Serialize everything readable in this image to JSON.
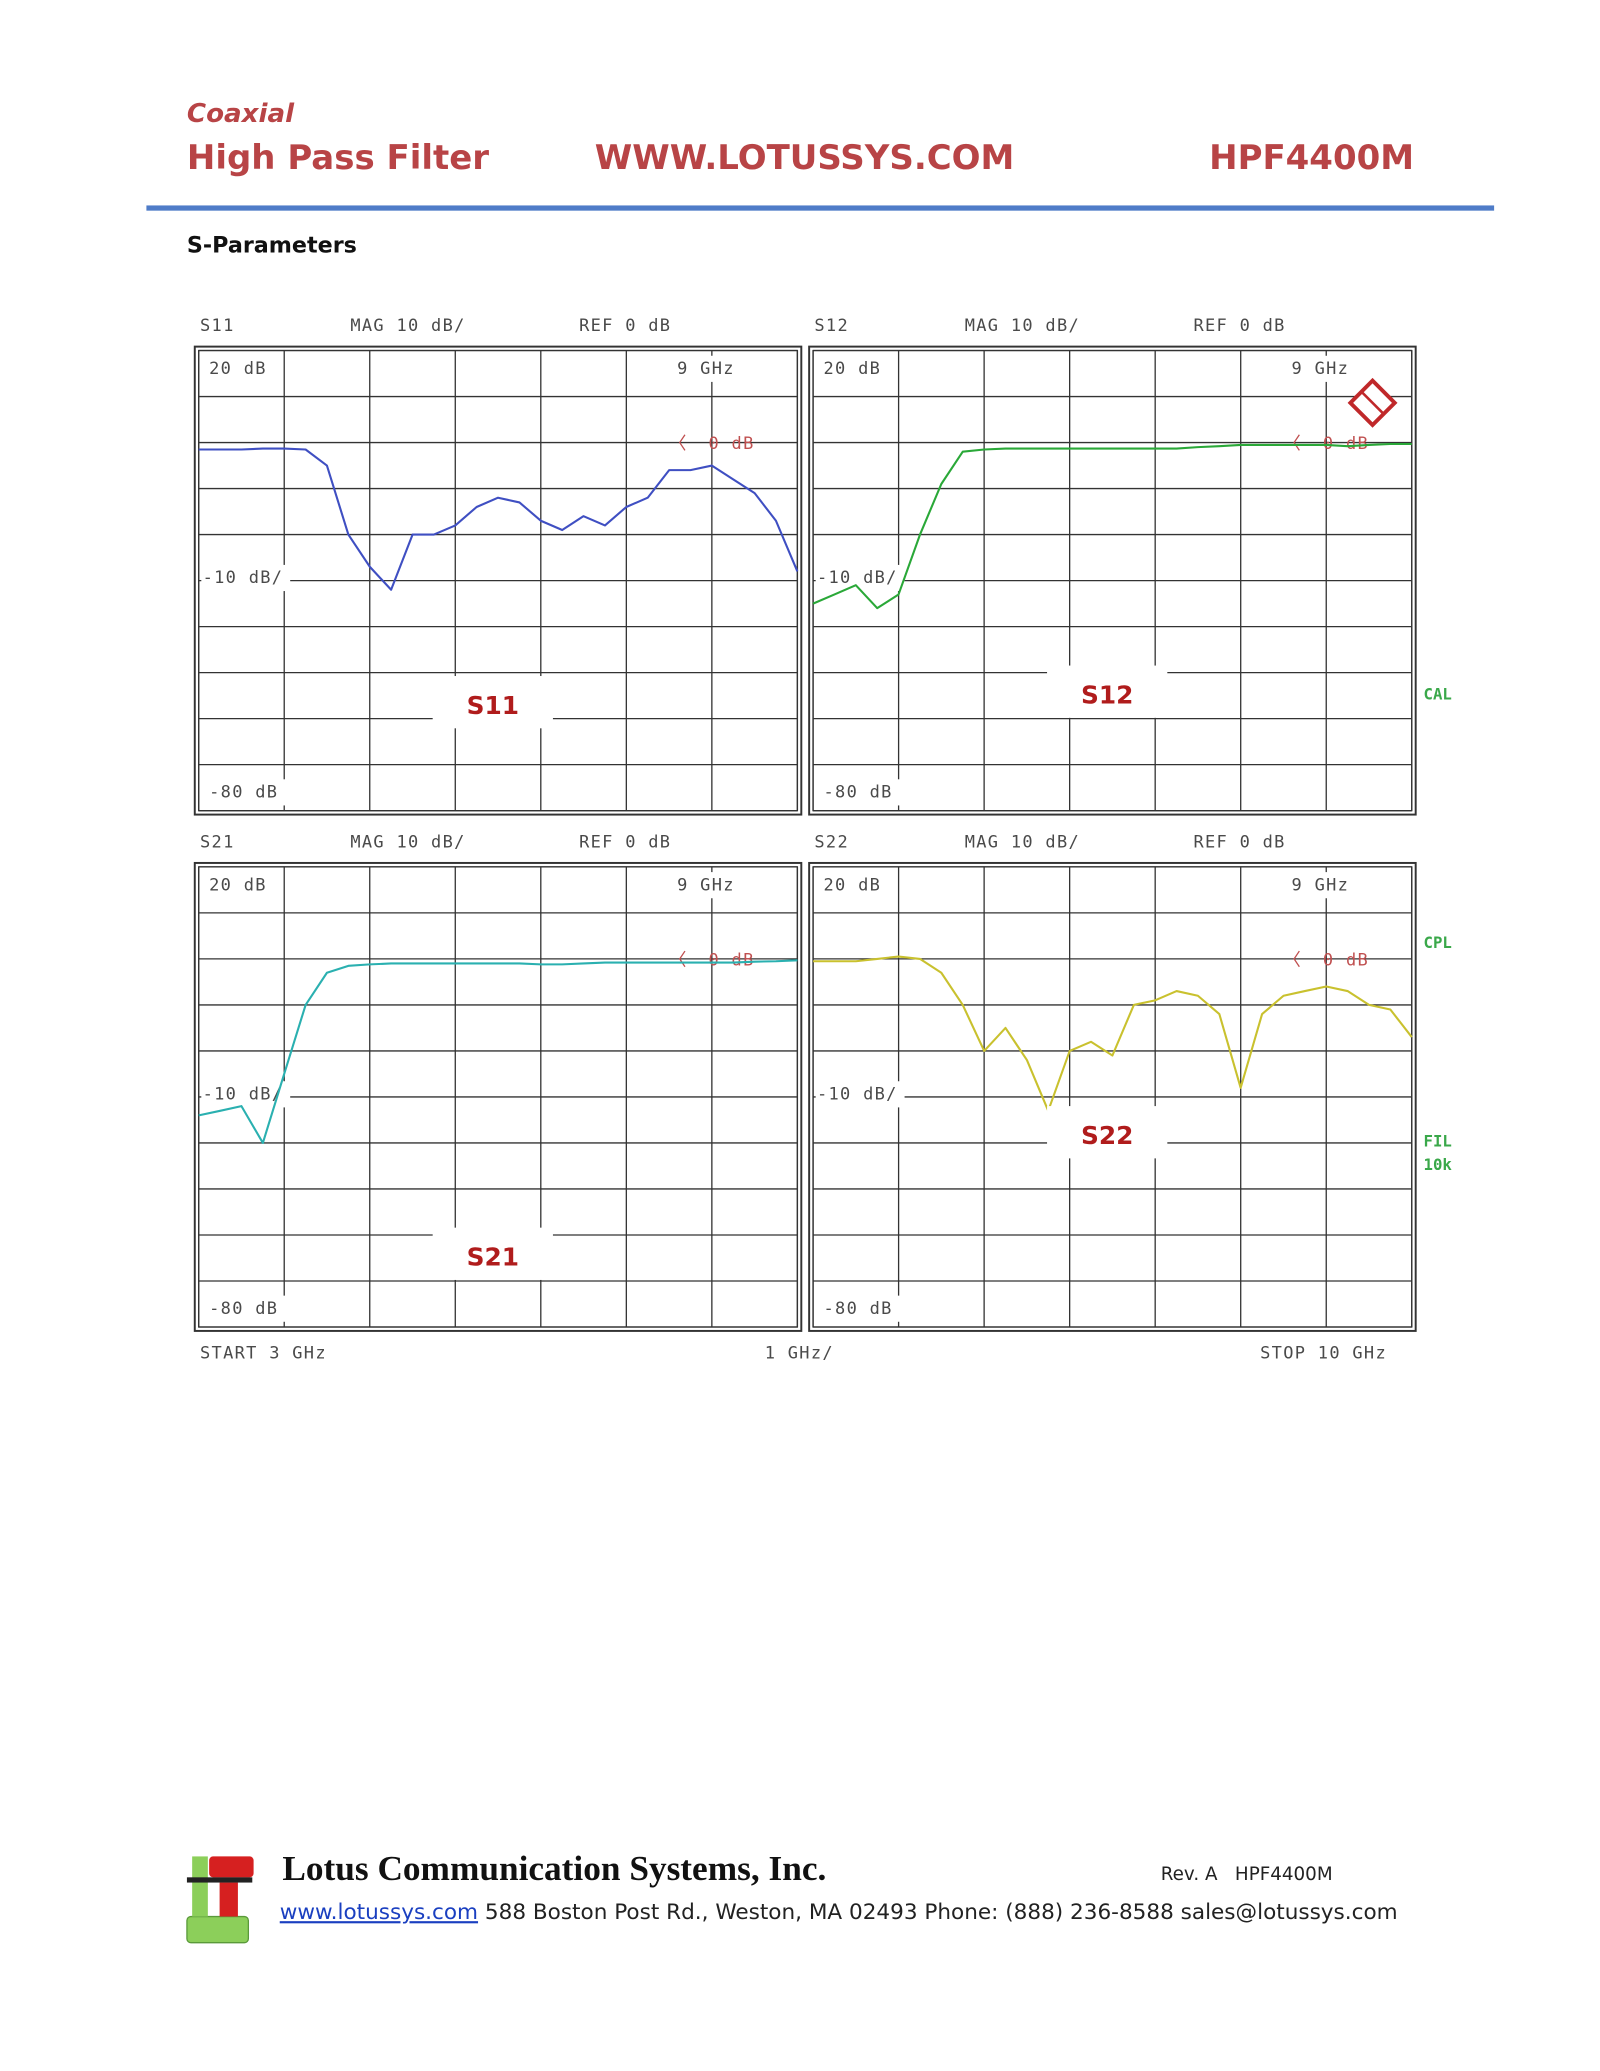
{
  "header": {
    "subtitle": "Coaxial",
    "title": "High Pass Filter",
    "website": "WWW.LOTUSSYS.COM",
    "part": "HPF4400M"
  },
  "section": "S-Parameters",
  "chart_data": [
    {
      "type": "line",
      "name": "S11",
      "scale_label": "MAG 10 dB/",
      "ref_label": "REF 0 dB",
      "label": "S11",
      "top_label": "20 dB",
      "bottom_label": "-80 dB",
      "marker_label": "9 GHz",
      "div_label": "-10 dB/",
      "ref_marker": "0 dB",
      "color": "#3f4fc2",
      "xlim": [
        3,
        10
      ],
      "ylim": [
        -80,
        20
      ],
      "xticks": [
        3,
        4,
        5,
        6,
        7,
        8,
        9,
        10
      ],
      "yticks": [
        -80,
        -70,
        -60,
        -50,
        -40,
        -30,
        -20,
        -10,
        0,
        10,
        20
      ],
      "grid": true,
      "x": [
        3,
        3.25,
        3.5,
        3.75,
        4,
        4.25,
        4.5,
        4.75,
        5,
        5.25,
        5.5,
        5.75,
        6,
        6.25,
        6.5,
        6.75,
        7,
        7.25,
        7.5,
        7.75,
        8,
        8.25,
        8.5,
        8.75,
        9,
        9.25,
        9.5,
        9.75,
        10
      ],
      "values": [
        -1.5,
        -1.5,
        -1.5,
        -1.3,
        -1.3,
        -1.5,
        -5,
        -20,
        -27,
        -32,
        -20,
        -20,
        -18,
        -14,
        -12,
        -13,
        -17,
        -19,
        -16,
        -18,
        -14,
        -12,
        -6,
        -6,
        -5,
        -8,
        -11,
        -17,
        -28
      ]
    },
    {
      "type": "line",
      "name": "S12",
      "scale_label": "MAG 10 dB/",
      "ref_label": "REF 0 dB",
      "label": "S12",
      "top_label": "20 dB",
      "bottom_label": "-80 dB",
      "marker_label": "9 GHz",
      "div_label": "-10 dB/",
      "ref_marker": "0 dB",
      "color": "#2aa838",
      "xlim": [
        3,
        10
      ],
      "ylim": [
        -80,
        20
      ],
      "xticks": [
        3,
        4,
        5,
        6,
        7,
        8,
        9,
        10
      ],
      "yticks": [
        -80,
        -70,
        -60,
        -50,
        -40,
        -30,
        -20,
        -10,
        0,
        10,
        20
      ],
      "grid": true,
      "x": [
        3,
        3.25,
        3.5,
        3.75,
        4,
        4.25,
        4.5,
        4.75,
        5,
        5.25,
        5.5,
        5.75,
        6,
        6.25,
        6.5,
        6.75,
        7,
        7.25,
        7.5,
        7.75,
        8,
        8.25,
        8.5,
        8.75,
        9,
        9.25,
        9.5,
        9.75,
        10
      ],
      "values": [
        -35,
        -33,
        -31,
        -36,
        -33,
        -20,
        -9,
        -2,
        -1.5,
        -1.3,
        -1.3,
        -1.3,
        -1.3,
        -1.3,
        -1.3,
        -1.3,
        -1.3,
        -1.3,
        -1,
        -0.8,
        -0.5,
        -0.5,
        -0.5,
        -0.5,
        -0.5,
        -0.8,
        -0.5,
        -0.3,
        -0.3
      ]
    },
    {
      "type": "line",
      "name": "S21",
      "scale_label": "MAG 10 dB/",
      "ref_label": "REF 0 dB",
      "label": "S21",
      "top_label": "20 dB",
      "bottom_label": "-80 dB",
      "marker_label": "9 GHz",
      "div_label": "-10 dB/",
      "ref_marker": "0 dB",
      "color": "#2ab0b0",
      "xlim": [
        3,
        10
      ],
      "ylim": [
        -80,
        20
      ],
      "xticks": [
        3,
        4,
        5,
        6,
        7,
        8,
        9,
        10
      ],
      "yticks": [
        -80,
        -70,
        -60,
        -50,
        -40,
        -30,
        -20,
        -10,
        0,
        10,
        20
      ],
      "grid": true,
      "x": [
        3,
        3.25,
        3.5,
        3.75,
        4,
        4.25,
        4.5,
        4.75,
        5,
        5.25,
        5.5,
        5.75,
        6,
        6.25,
        6.5,
        6.75,
        7,
        7.25,
        7.5,
        7.75,
        8,
        8.25,
        8.5,
        8.75,
        9,
        9.25,
        9.5,
        9.75,
        10
      ],
      "values": [
        -34,
        -33,
        -32,
        -40,
        -25,
        -10,
        -3,
        -1.5,
        -1.2,
        -1,
        -1,
        -1,
        -1,
        -1,
        -1,
        -1,
        -1.2,
        -1.2,
        -1,
        -0.8,
        -0.8,
        -0.8,
        -0.8,
        -0.8,
        -0.8,
        -0.8,
        -0.6,
        -0.5,
        -0.3
      ]
    },
    {
      "type": "line",
      "name": "S22",
      "scale_label": "MAG 10 dB/",
      "ref_label": "REF 0 dB",
      "label": "S22",
      "top_label": "20 dB",
      "bottom_label": "-80 dB",
      "marker_label": "9 GHz",
      "div_label": "-10 dB/",
      "ref_marker": "0 dB",
      "color": "#c9c12e",
      "xlim": [
        3,
        10
      ],
      "ylim": [
        -80,
        20
      ],
      "xticks": [
        3,
        4,
        5,
        6,
        7,
        8,
        9,
        10
      ],
      "yticks": [
        -80,
        -70,
        -60,
        -50,
        -40,
        -30,
        -20,
        -10,
        0,
        10,
        20
      ],
      "grid": true,
      "x": [
        3,
        3.25,
        3.5,
        3.75,
        4,
        4.25,
        4.5,
        4.75,
        5,
        5.25,
        5.5,
        5.75,
        6,
        6.25,
        6.5,
        6.75,
        7,
        7.25,
        7.5,
        7.75,
        8,
        8.25,
        8.5,
        8.75,
        9,
        9.25,
        9.5,
        9.75,
        10
      ],
      "values": [
        -0.5,
        -0.5,
        -0.5,
        0,
        0.5,
        0,
        -3,
        -10,
        -20,
        -15,
        -22,
        -33,
        -20,
        -18,
        -21,
        -10,
        -9,
        -7,
        -8,
        -12,
        -28,
        -12,
        -8,
        -7,
        -6,
        -7,
        -10,
        -11,
        -17
      ]
    }
  ],
  "instrument": {
    "start": "START 3 GHz",
    "span": "1 GHz/",
    "stop": "STOP 10 GHz",
    "side": [
      "CAL",
      "CPL",
      "FIL",
      "10k"
    ]
  },
  "footer": {
    "company": "Lotus Communication Systems, Inc.",
    "revision": "Rev. A   HPF4400M",
    "link": "www.lotussys.com",
    "contact": " 588 Boston Post Rd., Weston, MA 02493 Phone: (888) 236-8588 sales@lotussys.com"
  }
}
